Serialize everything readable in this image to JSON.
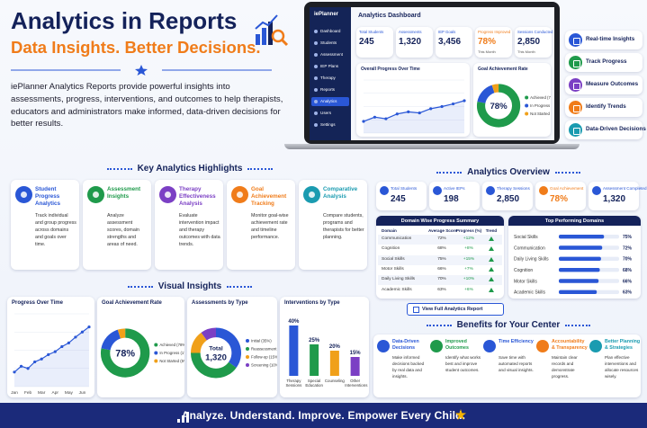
{
  "header": {
    "title": "Analytics in Reports",
    "subtitle": "Data Insights. Better Decisions.",
    "description": "iePlanner Analytics Reports provide powerful insights into assessments, progress, interventions, and outcomes to help therapists, educators and administrators make informed, data-driven decisions for better results."
  },
  "dashboard": {
    "logo": "iePlanner",
    "title": "Analytics Dashboard",
    "menu": [
      "Dashboard",
      "Students",
      "Assessment",
      "IEP Plans",
      "Therapy",
      "Reports",
      "Analytics",
      "Users",
      "Settings"
    ],
    "kpis": [
      {
        "label": "Total Students",
        "value": "245"
      },
      {
        "label": "Assessments",
        "value": "1,320"
      },
      {
        "label": "IEP Goals",
        "value": "3,456"
      },
      {
        "label": "Progress Improved",
        "value": "78%",
        "note": "This Month"
      },
      {
        "label": "Sessions Conducted",
        "value": "2,850",
        "note": "This Month"
      }
    ]
  },
  "features": [
    "Real-time Insights",
    "Track Progress",
    "Measure Outcomes",
    "Identify Trends",
    "Data-Driven Decisions"
  ],
  "highlights": {
    "title": "Key Analytics Highlights",
    "items": [
      {
        "title": "Student Progress Analytics",
        "text": "Track individual and group progress across domains and goals over time."
      },
      {
        "title": "Assessment Insights",
        "text": "Analyze assessment scores, domain strengths and areas of need."
      },
      {
        "title": "Therapy Effectiveness Analysis",
        "text": "Evaluate intervention impact and therapy outcomes with data trends."
      },
      {
        "title": "Goal Achievement Tracking",
        "text": "Monitor goal-wise achievement rate and timeline performance."
      },
      {
        "title": "Comparative Analysis",
        "text": "Compare students, programs and therapists for better planning."
      }
    ]
  },
  "overview": {
    "title": "Analytics Overview",
    "kpis": [
      {
        "label": "Total Students",
        "value": "245"
      },
      {
        "label": "Active IEPs",
        "value": "198"
      },
      {
        "label": "Therapy Sessions",
        "value": "2,850"
      },
      {
        "label": "Goal Achievement",
        "value": "78%"
      },
      {
        "label": "Assessment Completed",
        "value": "1,320"
      }
    ],
    "table": {
      "title": "Domain Wise Progress Summary",
      "columns": [
        "Domain",
        "Average Score",
        "Progress (%)",
        "Trend"
      ],
      "rows": [
        [
          "Communication",
          "72%",
          "+12%"
        ],
        [
          "Cognition",
          "68%",
          "+8%"
        ],
        [
          "Social Skills",
          "75%",
          "+15%"
        ],
        [
          "Motor Skills",
          "66%",
          "+7%"
        ],
        [
          "Daily Living Skills",
          "70%",
          "+10%"
        ],
        [
          "Academic Skills",
          "63%",
          "+6%"
        ]
      ]
    },
    "button": "View Full Analytics Report"
  },
  "visual_title": "Visual Insights",
  "benefits": {
    "title": "Benefits for Your Center",
    "items": [
      {
        "title": "Data-Driven Decisions",
        "text": "Make informed decisions backed by real data and insights."
      },
      {
        "title": "Improved Outcomes",
        "text": "Identify what works best and improve student outcomes."
      },
      {
        "title": "Time Efficiency",
        "text": "Save time with automated reports and visual insights."
      },
      {
        "title": "Accountability & Transparency",
        "text": "Maintain clear records and demonstrate progress."
      },
      {
        "title": "Better Planning & Strategies",
        "text": "Plan effective interventions and allocate resources wisely."
      }
    ]
  },
  "footer": "Analyze. Understand. Improve. Empower Every Child.",
  "chart_data": [
    {
      "type": "line",
      "title": "Overall Progress Over Time",
      "values": [
        22,
        30,
        27,
        36,
        40,
        38,
        46,
        50,
        55,
        61
      ],
      "ylim": [
        0,
        100
      ],
      "color": "#2a57d6"
    },
    {
      "type": "donut",
      "title": "Goal Achievement Rate",
      "center_label": "78%",
      "categories": [
        "Achieved (78%)",
        "In Progress (17%)",
        "Not Started (5%)"
      ],
      "values": [
        78,
        17,
        5
      ],
      "colors": [
        "#1f9a4b",
        "#2a57d6",
        "#f0a01a"
      ]
    },
    {
      "type": "hbar",
      "title": "Top Performing Domains",
      "categories": [
        "Social Skills",
        "Communication",
        "Daily Living Skills",
        "Cognition",
        "Motor Skills",
        "Academic Skills"
      ],
      "values": [
        75,
        72,
        70,
        68,
        66,
        63
      ],
      "value_labels": [
        "75%",
        "72%",
        "70%",
        "68%",
        "66%",
        "63%"
      ],
      "xlim": [
        0,
        100
      ],
      "color": "#2a57d6"
    },
    {
      "type": "line",
      "title": "Progress Over Time",
      "categories": [
        "Jan",
        null,
        "Feb",
        null,
        "Mar",
        null,
        "Apr",
        null,
        "May",
        null,
        "Jun",
        null
      ],
      "values": [
        20,
        28,
        25,
        34,
        38,
        44,
        48,
        55,
        60,
        68,
        75,
        82
      ],
      "ylim": [
        0,
        100
      ],
      "color": "#2a57d6"
    },
    {
      "type": "donut",
      "title": "Goal Achievement Rate",
      "center_label": "78%",
      "categories": [
        "Achieved (78%)",
        "In Progress (17%)",
        "Not Started (5%)"
      ],
      "values": [
        78,
        17,
        5
      ],
      "colors": [
        "#1f9a4b",
        "#2a57d6",
        "#f0a01a"
      ]
    },
    {
      "type": "donut",
      "title": "Assessments by Type",
      "center_label": "Total",
      "center_value": "1,320",
      "categories": [
        "Initial (35%)",
        "Reassessment (40%)",
        "Follow-up (15%)",
        "Screening (10%)"
      ],
      "values": [
        35,
        40,
        15,
        10
      ],
      "colors": [
        "#2a57d6",
        "#1f9a4b",
        "#f0a01a",
        "#7b3fc4"
      ]
    },
    {
      "type": "bar",
      "title": "Interventions by Type",
      "categories": [
        "Therapy Sessions",
        "Special Education",
        "Counseling",
        "Other Interventions"
      ],
      "values": [
        40,
        25,
        20,
        15
      ],
      "value_labels": [
        "40%",
        "25%",
        "20%",
        "15%"
      ],
      "ylim": [
        0,
        45
      ],
      "colors": [
        "#2a57d6",
        "#1f9a4b",
        "#f0a01a",
        "#7b3fc4"
      ]
    }
  ]
}
